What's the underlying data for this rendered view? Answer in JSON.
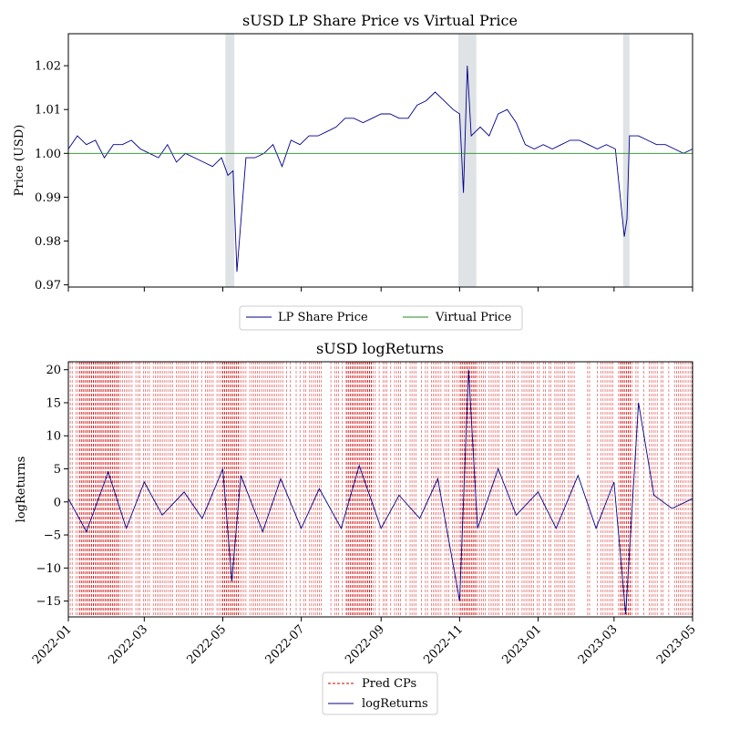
{
  "chart_data": [
    {
      "type": "line",
      "title": "sUSD LP Share Price vs Virtual Price",
      "ylabel": "Price (USD)",
      "xlabel": "",
      "xlim": [
        "2022-01-01",
        "2023-05-01"
      ],
      "ylim": [
        0.9695,
        1.0273
      ],
      "yticks": [
        0.97,
        0.98,
        0.99,
        1.0,
        1.01,
        1.02
      ],
      "ytick_labels": [
        "0.97",
        "0.98",
        "0.99",
        "1.00",
        "1.01",
        "1.02"
      ],
      "grid": false,
      "legend_placement": "below",
      "shaded_regions": [
        {
          "start": "2022-05-03",
          "end": "2022-05-10"
        },
        {
          "start": "2022-10-31",
          "end": "2022-11-14"
        },
        {
          "start": "2023-03-08",
          "end": "2023-03-13"
        }
      ],
      "series": [
        {
          "name": "LP Share Price",
          "color": "#00008b",
          "x": [
            "2022-01-01",
            "2022-01-08",
            "2022-01-15",
            "2022-01-22",
            "2022-01-29",
            "2022-02-05",
            "2022-02-12",
            "2022-02-19",
            "2022-02-26",
            "2022-03-05",
            "2022-03-12",
            "2022-03-19",
            "2022-03-26",
            "2022-04-02",
            "2022-04-09",
            "2022-04-16",
            "2022-04-23",
            "2022-04-30",
            "2022-05-05",
            "2022-05-09",
            "2022-05-12",
            "2022-05-19",
            "2022-05-26",
            "2022-06-02",
            "2022-06-09",
            "2022-06-16",
            "2022-06-23",
            "2022-06-30",
            "2022-07-07",
            "2022-07-14",
            "2022-07-21",
            "2022-07-28",
            "2022-08-04",
            "2022-08-11",
            "2022-08-18",
            "2022-08-25",
            "2022-09-01",
            "2022-09-08",
            "2022-09-15",
            "2022-09-22",
            "2022-09-29",
            "2022-10-06",
            "2022-10-13",
            "2022-10-20",
            "2022-10-27",
            "2022-11-01",
            "2022-11-04",
            "2022-11-07",
            "2022-11-10",
            "2022-11-17",
            "2022-11-24",
            "2022-12-01",
            "2022-12-08",
            "2022-12-15",
            "2022-12-22",
            "2022-12-29",
            "2023-01-05",
            "2023-01-12",
            "2023-01-19",
            "2023-01-26",
            "2023-02-02",
            "2023-02-09",
            "2023-02-16",
            "2023-02-23",
            "2023-03-02",
            "2023-03-09",
            "2023-03-11",
            "2023-03-13",
            "2023-03-20",
            "2023-03-27",
            "2023-04-03",
            "2023-04-10",
            "2023-04-17",
            "2023-04-24",
            "2023-05-01"
          ],
          "y": [
            1.001,
            1.004,
            1.002,
            1.003,
            0.999,
            1.002,
            1.002,
            1.003,
            1.001,
            1.0,
            0.999,
            1.002,
            0.998,
            1.0,
            0.999,
            0.998,
            0.997,
            0.999,
            0.995,
            0.996,
            0.973,
            0.999,
            0.999,
            1.0,
            1.002,
            0.997,
            1.003,
            1.002,
            1.004,
            1.004,
            1.005,
            1.006,
            1.008,
            1.008,
            1.007,
            1.008,
            1.009,
            1.009,
            1.008,
            1.008,
            1.011,
            1.012,
            1.014,
            1.012,
            1.01,
            1.009,
            0.991,
            1.02,
            1.004,
            1.006,
            1.004,
            1.009,
            1.01,
            1.007,
            1.002,
            1.001,
            1.002,
            1.001,
            1.002,
            1.003,
            1.003,
            1.002,
            1.001,
            1.002,
            1.001,
            0.981,
            0.985,
            1.004,
            1.004,
            1.003,
            1.002,
            1.002,
            1.001,
            1.0,
            1.001
          ]
        },
        {
          "name": "Virtual Price",
          "color": "#228b22",
          "x": [
            "2022-01-01",
            "2023-05-01"
          ],
          "y": [
            1.0,
            1.0
          ]
        }
      ]
    },
    {
      "type": "line",
      "title": "sUSD logReturns",
      "ylabel": "logReturns",
      "xlabel": "",
      "xlim": [
        "2022-01-01",
        "2023-05-01"
      ],
      "ylim": [
        -17.4,
        21.2
      ],
      "yticks": [
        -15,
        -10,
        -5,
        0,
        5,
        10,
        15,
        20
      ],
      "ytick_labels": [
        "−15",
        "−10",
        "−5",
        "0",
        "5",
        "10",
        "15",
        "20"
      ],
      "xticks": [
        "2022-01-01",
        "2022-03-01",
        "2022-05-01",
        "2022-07-01",
        "2022-09-01",
        "2022-11-01",
        "2023-01-01",
        "2023-03-01",
        "2023-05-01"
      ],
      "xtick_labels": [
        "2022-01",
        "2022-03",
        "2022-05",
        "2022-07",
        "2022-09",
        "2022-11",
        "2023-01",
        "2023-03",
        "2023-05"
      ],
      "grid": false,
      "legend_placement": "below",
      "series": [
        {
          "name": "Pred CPs",
          "color": "#cc0000",
          "style": "dashed-vertical",
          "dense_intervals": [
            [
              "2022-01-10",
              "2022-02-10"
            ],
            [
              "2022-05-01",
              "2022-05-14"
            ],
            [
              "2022-08-05",
              "2022-08-25"
            ],
            [
              "2022-11-01",
              "2022-11-14"
            ],
            [
              "2023-03-05",
              "2023-03-14"
            ]
          ]
        },
        {
          "name": "logReturns",
          "color": "#00008b",
          "x": [
            "2022-01-01",
            "2022-01-15",
            "2022-02-01",
            "2022-02-15",
            "2022-03-01",
            "2022-03-15",
            "2022-04-01",
            "2022-04-15",
            "2022-05-01",
            "2022-05-08",
            "2022-05-15",
            "2022-06-01",
            "2022-06-15",
            "2022-07-01",
            "2022-07-15",
            "2022-08-01",
            "2022-08-15",
            "2022-09-01",
            "2022-09-15",
            "2022-10-01",
            "2022-10-15",
            "2022-11-01",
            "2022-11-08",
            "2022-11-15",
            "2022-12-01",
            "2022-12-15",
            "2023-01-01",
            "2023-01-15",
            "2023-02-01",
            "2023-02-15",
            "2023-03-01",
            "2023-03-10",
            "2023-03-20",
            "2023-04-01",
            "2023-04-15",
            "2023-05-01"
          ],
          "y": [
            0.5,
            -4.5,
            4.5,
            -4.0,
            3.0,
            -2.0,
            1.5,
            -2.5,
            5.0,
            -12.0,
            4.0,
            -4.5,
            3.5,
            -4.0,
            2.0,
            -4.0,
            5.5,
            -4.0,
            1.0,
            -2.5,
            3.5,
            -15.0,
            20.0,
            -4.0,
            5.0,
            -2.0,
            1.5,
            -4.0,
            4.0,
            -4.0,
            3.0,
            -17.0,
            15.0,
            1.0,
            -1.0,
            0.5
          ]
        }
      ]
    }
  ]
}
